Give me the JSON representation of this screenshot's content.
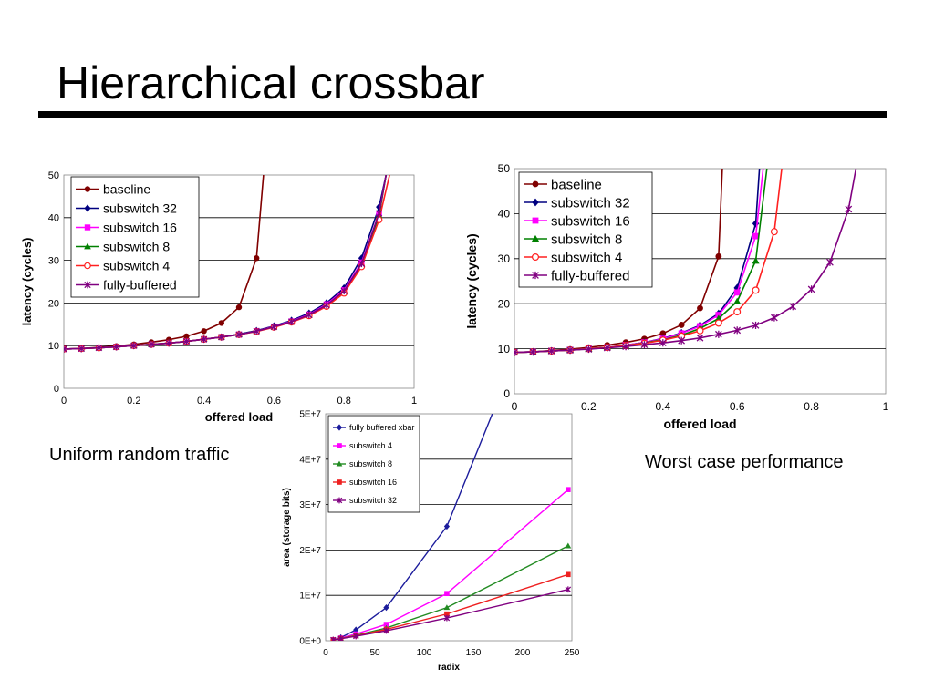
{
  "slide": {
    "title": "Hierarchical crossbar",
    "caption_left": "Uniform random traffic",
    "caption_right": "Worst case performance"
  },
  "chart_data": [
    {
      "id": "uniform",
      "type": "line",
      "title": "",
      "xlabel": "offered load",
      "ylabel": "latency (cycles)",
      "xlim": [
        0,
        1
      ],
      "ylim": [
        0,
        50
      ],
      "xticks": [
        "0",
        "0.2",
        "0.4",
        "0.6",
        "0.8",
        "1"
      ],
      "yticks": [
        "0",
        "10",
        "20",
        "30",
        "40",
        "50"
      ],
      "grid": "horizontal",
      "legend": "top-left",
      "series": [
        {
          "name": "baseline",
          "color": "#800000",
          "marker": "circle",
          "x": [
            0,
            0.05,
            0.1,
            0.15,
            0.2,
            0.25,
            0.3,
            0.35,
            0.4,
            0.45,
            0.5,
            0.55,
            0.57
          ],
          "y": [
            9.2,
            9.3,
            9.6,
            9.9,
            10.3,
            10.8,
            11.4,
            12.2,
            13.4,
            15.3,
            19,
            30.5,
            50
          ]
        },
        {
          "name": "subswitch 32",
          "color": "#000080",
          "marker": "diamond",
          "x": [
            0,
            0.05,
            0.1,
            0.15,
            0.2,
            0.25,
            0.3,
            0.35,
            0.4,
            0.45,
            0.5,
            0.55,
            0.6,
            0.65,
            0.7,
            0.75,
            0.8,
            0.85,
            0.9,
            0.92
          ],
          "y": [
            9.2,
            9.3,
            9.5,
            9.7,
            10,
            10.3,
            10.6,
            11,
            11.5,
            12,
            12.7,
            13.5,
            14.6,
            15.9,
            17.6,
            20,
            23.5,
            30.5,
            42.5,
            50
          ]
        },
        {
          "name": "subswitch 16",
          "color": "#ff00ff",
          "marker": "square",
          "x": [
            0,
            0.05,
            0.1,
            0.15,
            0.2,
            0.25,
            0.3,
            0.35,
            0.4,
            0.45,
            0.5,
            0.55,
            0.6,
            0.65,
            0.7,
            0.75,
            0.8,
            0.85,
            0.9,
            0.92
          ],
          "y": [
            9.2,
            9.3,
            9.5,
            9.7,
            10,
            10.3,
            10.6,
            11,
            11.5,
            12,
            12.6,
            13.4,
            14.5,
            15.7,
            17.3,
            19.7,
            23,
            29.5,
            41,
            50
          ]
        },
        {
          "name": "subswitch 8",
          "color": "#008000",
          "marker": "triangle",
          "x": [
            0,
            0.05,
            0.1,
            0.15,
            0.2,
            0.25,
            0.3,
            0.35,
            0.4,
            0.45,
            0.5,
            0.55,
            0.6,
            0.65,
            0.7,
            0.75,
            0.8,
            0.85,
            0.9,
            0.92
          ],
          "y": [
            9.2,
            9.3,
            9.5,
            9.7,
            10,
            10.3,
            10.6,
            11,
            11.5,
            12,
            12.6,
            13.4,
            14.4,
            15.6,
            17.1,
            19.4,
            22.6,
            29,
            40.5,
            50
          ]
        },
        {
          "name": "subswitch 4",
          "color": "#ff2020",
          "marker": "circle-open",
          "x": [
            0,
            0.05,
            0.1,
            0.15,
            0.2,
            0.25,
            0.3,
            0.35,
            0.4,
            0.45,
            0.5,
            0.55,
            0.6,
            0.65,
            0.7,
            0.75,
            0.8,
            0.85,
            0.9,
            0.93
          ],
          "y": [
            9.2,
            9.3,
            9.5,
            9.7,
            10,
            10.3,
            10.6,
            11,
            11.5,
            12,
            12.6,
            13.3,
            14.3,
            15.5,
            17,
            19.2,
            22.3,
            28.5,
            39.5,
            50
          ]
        },
        {
          "name": "fully-buffered",
          "color": "#800080",
          "marker": "star",
          "x": [
            0,
            0.05,
            0.1,
            0.15,
            0.2,
            0.25,
            0.3,
            0.35,
            0.4,
            0.45,
            0.5,
            0.55,
            0.6,
            0.65,
            0.7,
            0.75,
            0.8,
            0.85,
            0.9,
            0.92
          ],
          "y": [
            9.2,
            9.3,
            9.5,
            9.7,
            10,
            10.3,
            10.6,
            11,
            11.5,
            12,
            12.6,
            13.4,
            14.4,
            15.6,
            17.2,
            19.5,
            22.8,
            29.2,
            41,
            50
          ]
        }
      ]
    },
    {
      "id": "worst",
      "type": "line",
      "title": "",
      "xlabel": "offered load",
      "ylabel": "latency (cycles)",
      "xlim": [
        0,
        1
      ],
      "ylim": [
        0,
        50
      ],
      "xticks": [
        "0",
        "0.2",
        "0.4",
        "0.6",
        "0.8",
        "1"
      ],
      "yticks": [
        "0",
        "10",
        "20",
        "30",
        "40",
        "50"
      ],
      "grid": "horizontal",
      "legend": "top-left",
      "series": [
        {
          "name": "baseline",
          "color": "#800000",
          "marker": "circle",
          "x": [
            0,
            0.05,
            0.1,
            0.15,
            0.2,
            0.25,
            0.3,
            0.35,
            0.4,
            0.45,
            0.5,
            0.55,
            0.56
          ],
          "y": [
            9.2,
            9.3,
            9.6,
            9.9,
            10.3,
            10.8,
            11.4,
            12.2,
            13.4,
            15.3,
            19,
            30.5,
            50
          ]
        },
        {
          "name": "subswitch 32",
          "color": "#000080",
          "marker": "diamond",
          "x": [
            0,
            0.05,
            0.1,
            0.15,
            0.2,
            0.25,
            0.3,
            0.35,
            0.4,
            0.45,
            0.5,
            0.55,
            0.6,
            0.65,
            0.66
          ],
          "y": [
            9.2,
            9.3,
            9.5,
            9.7,
            10,
            10.3,
            10.8,
            11.4,
            12.3,
            13.5,
            15.2,
            17.8,
            23.5,
            37.8,
            50
          ]
        },
        {
          "name": "subswitch 16",
          "color": "#ff00ff",
          "marker": "square",
          "x": [
            0,
            0.05,
            0.1,
            0.15,
            0.2,
            0.25,
            0.3,
            0.35,
            0.4,
            0.45,
            0.5,
            0.55,
            0.6,
            0.65,
            0.67
          ],
          "y": [
            9.2,
            9.3,
            9.5,
            9.7,
            10,
            10.3,
            10.8,
            11.4,
            12.2,
            13.4,
            15,
            17.5,
            22.5,
            35,
            50
          ]
        },
        {
          "name": "subswitch 8",
          "color": "#008000",
          "marker": "triangle",
          "x": [
            0,
            0.05,
            0.1,
            0.15,
            0.2,
            0.25,
            0.3,
            0.35,
            0.4,
            0.45,
            0.5,
            0.55,
            0.6,
            0.65,
            0.68
          ],
          "y": [
            9.2,
            9.3,
            9.5,
            9.7,
            10,
            10.3,
            10.7,
            11.3,
            12,
            13,
            14.5,
            16.7,
            20.5,
            29.5,
            50
          ]
        },
        {
          "name": "subswitch 4",
          "color": "#ff2020",
          "marker": "circle-open",
          "x": [
            0,
            0.05,
            0.1,
            0.15,
            0.2,
            0.25,
            0.3,
            0.35,
            0.4,
            0.45,
            0.5,
            0.55,
            0.6,
            0.65,
            0.7,
            0.72
          ],
          "y": [
            9.2,
            9.3,
            9.5,
            9.7,
            10,
            10.3,
            10.7,
            11.2,
            11.9,
            12.8,
            14,
            15.7,
            18.2,
            23,
            36,
            50
          ]
        },
        {
          "name": "fully-buffered",
          "color": "#800080",
          "marker": "star",
          "x": [
            0,
            0.05,
            0.1,
            0.15,
            0.2,
            0.25,
            0.3,
            0.35,
            0.4,
            0.45,
            0.5,
            0.55,
            0.6,
            0.65,
            0.7,
            0.75,
            0.8,
            0.85,
            0.9,
            0.92
          ],
          "y": [
            9.2,
            9.3,
            9.5,
            9.7,
            9.9,
            10.2,
            10.5,
            10.9,
            11.3,
            11.8,
            12.4,
            13.2,
            14.1,
            15.2,
            16.9,
            19.4,
            23.2,
            29.2,
            41,
            50
          ]
        }
      ]
    },
    {
      "id": "area",
      "type": "line",
      "title": "",
      "xlabel": "radix",
      "ylabel": "area (storage bits)",
      "xlim": [
        0,
        260
      ],
      "ylim": [
        0,
        50000000
      ],
      "xticks": [
        "0",
        "50",
        "100",
        "150",
        "200",
        "250"
      ],
      "yticks": [
        "0E+0",
        "1E+7",
        "2E+7",
        "3E+7",
        "4E+7",
        "5E+7"
      ],
      "grid": "horizontal",
      "legend": "top-left",
      "series": [
        {
          "name": "fully buffered xbar",
          "color": "#1c1c9c",
          "marker": "diamond",
          "x": [
            8,
            16,
            32,
            64,
            128,
            176
          ],
          "y": [
            200000,
            700000,
            2400000,
            7300000,
            25200000,
            50000000
          ]
        },
        {
          "name": "subswitch 4",
          "color": "#ff00ff",
          "marker": "square",
          "x": [
            8,
            16,
            32,
            64,
            128,
            256
          ],
          "y": [
            200000,
            600000,
            1500000,
            3600000,
            10400000,
            33300000
          ]
        },
        {
          "name": "subswitch 8",
          "color": "#228b22",
          "marker": "triangle",
          "x": [
            8,
            16,
            32,
            64,
            128,
            256
          ],
          "y": [
            200000,
            500000,
            1200000,
            2800000,
            7300000,
            20900000
          ]
        },
        {
          "name": "subswitch 16",
          "color": "#ee2020",
          "marker": "square",
          "x": [
            8,
            16,
            32,
            64,
            128,
            256
          ],
          "y": [
            200000,
            500000,
            1100000,
            2500000,
            5900000,
            14600000
          ]
        },
        {
          "name": "subswitch 32",
          "color": "#800080",
          "marker": "star",
          "x": [
            8,
            16,
            32,
            64,
            128,
            256
          ],
          "y": [
            200000,
            450000,
            1000000,
            2200000,
            5000000,
            11300000
          ]
        }
      ]
    }
  ]
}
